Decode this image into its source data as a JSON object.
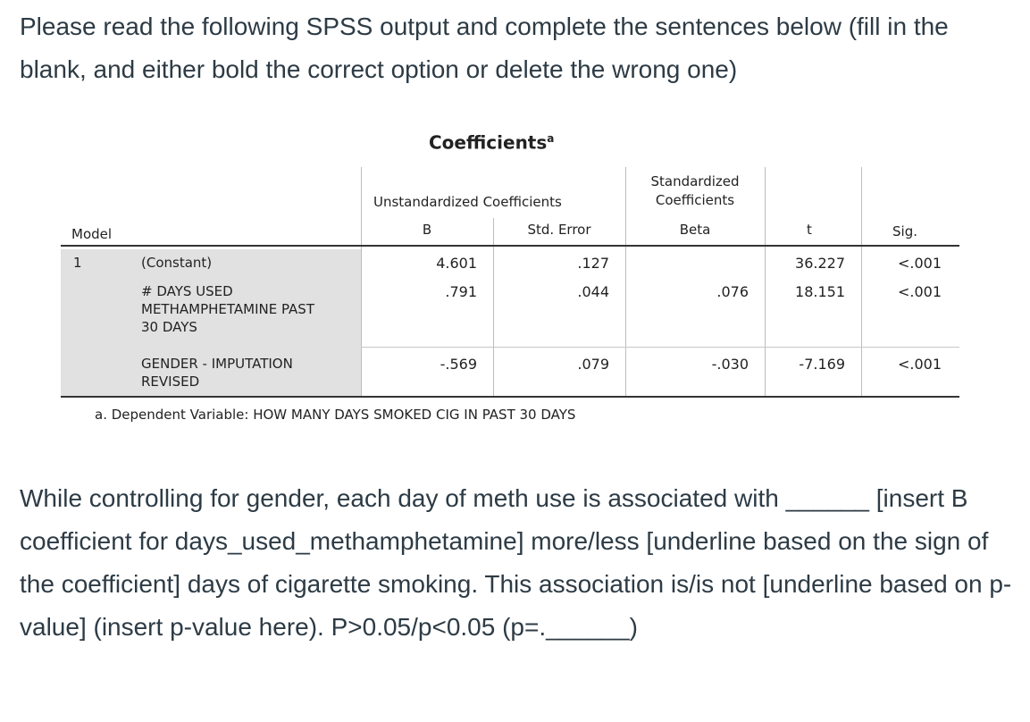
{
  "prompt": "Please read the following SPSS output and complete the sentences below (fill in the blank, and either bold the correct option or delete the wrong one)",
  "table": {
    "title": "Coefficients",
    "title_sup": "a",
    "header": {
      "model": "Model",
      "unstd_group": "Unstandardized Coefficients",
      "std_group_line1": "Standardized",
      "std_group_line2": "Coefficients",
      "b": "B",
      "std_error": "Std. Error",
      "beta": "Beta",
      "t": "t",
      "sig": "Sig."
    },
    "model_number": "1",
    "rows": [
      {
        "label": "(Constant)",
        "b": "4.601",
        "se": ".127",
        "beta": "",
        "t": "36.227",
        "sig": "<.001"
      },
      {
        "label": "# DAYS USED METHAMPHETAMINE PAST 30 DAYS",
        "b": ".791",
        "se": ".044",
        "beta": ".076",
        "t": "18.151",
        "sig": "<.001"
      },
      {
        "label": "GENDER - IMPUTATION REVISED",
        "b": "-.569",
        "se": ".079",
        "beta": "-.030",
        "t": "-7.169",
        "sig": "<.001"
      }
    ],
    "footnote": "a. Dependent Variable: HOW MANY DAYS SMOKED CIG IN PAST 30 DAYS"
  },
  "answer_text": "While controlling for gender, each day of meth use is associated with ______ [insert B coefficient for days_used_methamphetamine] more/less [underline based on the sign of the coefficient] days of cigarette smoking. This association is/is not [underline based on p-value] (insert p-value here). P>0.05/p<0.05 (p=.______)"
}
